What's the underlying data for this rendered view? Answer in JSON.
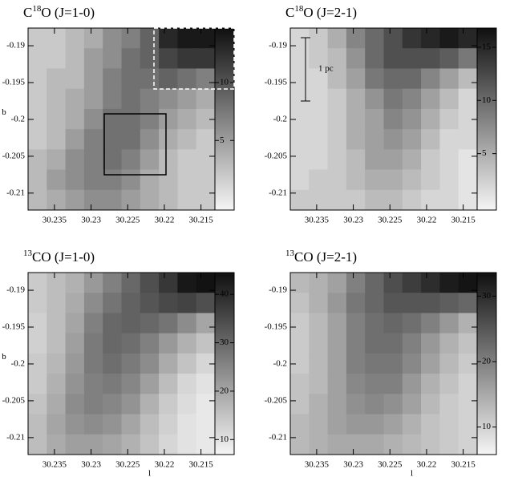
{
  "chart_data": [
    {
      "type": "heatmap",
      "title": {
        "pre": "C",
        "sup": "18",
        "text": "O (J=1-0)"
      },
      "ylabel": "b",
      "xlim": [
        30.2386,
        30.2131
      ],
      "xticks": [
        30.235,
        30.23,
        30.225,
        30.22,
        30.215
      ],
      "ylim": [
        -0.2123,
        -0.1876
      ],
      "yticks": [
        -0.19,
        -0.195,
        -0.2,
        -0.205,
        -0.21
      ],
      "clim": [
        -1,
        14.7
      ],
      "cticks": [
        5,
        10
      ],
      "values": [
        [
          2,
          2,
          3,
          4,
          6,
          7,
          9,
          13,
          14,
          14
        ],
        [
          2,
          2,
          3,
          5,
          6,
          8,
          9,
          11,
          12,
          12
        ],
        [
          2,
          3,
          3,
          5,
          7,
          8,
          8,
          9,
          8,
          7
        ],
        [
          2,
          3,
          4,
          5,
          7,
          8,
          7,
          6,
          5,
          4
        ],
        [
          2,
          3,
          4,
          6,
          8,
          8,
          7,
          5,
          4,
          3
        ],
        [
          2,
          3,
          5,
          7,
          8,
          8,
          6,
          4,
          3,
          2
        ],
        [
          3,
          4,
          6,
          7,
          8,
          7,
          5,
          3,
          2,
          2
        ],
        [
          3,
          5,
          6,
          7,
          7,
          6,
          4,
          3,
          2,
          2
        ],
        [
          3,
          4,
          5,
          6,
          6,
          5,
          4,
          3,
          2,
          2
        ]
      ]
    },
    {
      "type": "heatmap",
      "title": {
        "pre": "C",
        "sup": "18",
        "text": "O (J=2-1)"
      },
      "annotation": "1 pc",
      "xlim": [
        30.2386,
        30.2131
      ],
      "xticks": [
        30.235,
        30.23,
        30.225,
        30.22,
        30.215
      ],
      "ylim": [
        -0.2123,
        -0.1876
      ],
      "yticks": [
        -0.19,
        -0.195,
        -0.2,
        -0.205,
        -0.21
      ],
      "clim": [
        -0.3,
        16.8
      ],
      "cticks": [
        5,
        10,
        15
      ],
      "values": [
        [
          2,
          3,
          5,
          8,
          10,
          12,
          14,
          15,
          16,
          15
        ],
        [
          2,
          3,
          4,
          7,
          10,
          12,
          12,
          12,
          11,
          9
        ],
        [
          2,
          2,
          4,
          6,
          9,
          10,
          10,
          8,
          6,
          4
        ],
        [
          2,
          2,
          3,
          5,
          7,
          9,
          8,
          6,
          4,
          2
        ],
        [
          2,
          2,
          3,
          5,
          6,
          8,
          7,
          5,
          3,
          2
        ],
        [
          2,
          2,
          3,
          5,
          6,
          7,
          6,
          4,
          2,
          2
        ],
        [
          2,
          2,
          3,
          4,
          6,
          6,
          5,
          3,
          2,
          1
        ],
        [
          2,
          3,
          3,
          4,
          5,
          5,
          4,
          3,
          2,
          1
        ],
        [
          3,
          3,
          3,
          3,
          4,
          4,
          3,
          2,
          2,
          1
        ]
      ]
    },
    {
      "type": "heatmap",
      "title": {
        "sup": "13",
        "text": "CO (J=1-0)"
      },
      "ylabel": "b",
      "xlabel": "l",
      "xlim": [
        30.2386,
        30.2131
      ],
      "xticks": [
        30.235,
        30.23,
        30.225,
        30.22,
        30.215
      ],
      "ylim": [
        -0.2123,
        -0.1876
      ],
      "yticks": [
        -0.19,
        -0.195,
        -0.2,
        -0.205,
        -0.21
      ],
      "clim": [
        6.9,
        44.5
      ],
      "cticks": [
        10,
        20,
        30,
        40
      ],
      "values": [
        [
          14,
          16,
          18,
          22,
          26,
          30,
          34,
          38,
          43,
          44
        ],
        [
          14,
          16,
          19,
          24,
          28,
          31,
          33,
          35,
          36,
          34
        ],
        [
          13,
          16,
          20,
          26,
          30,
          31,
          30,
          28,
          24,
          20
        ],
        [
          13,
          16,
          21,
          27,
          30,
          29,
          26,
          22,
          18,
          15
        ],
        [
          14,
          17,
          22,
          27,
          29,
          27,
          24,
          19,
          15,
          12
        ],
        [
          14,
          18,
          23,
          26,
          27,
          25,
          21,
          16,
          12,
          10
        ],
        [
          15,
          19,
          24,
          26,
          25,
          23,
          18,
          14,
          11,
          9
        ],
        [
          16,
          20,
          23,
          24,
          23,
          20,
          16,
          13,
          10,
          9
        ],
        [
          16,
          19,
          21,
          21,
          20,
          18,
          15,
          12,
          10,
          9
        ]
      ]
    },
    {
      "type": "heatmap",
      "title": {
        "sup": "13",
        "text": "CO (J=2-1)"
      },
      "xlabel": "l",
      "xlim": [
        30.2386,
        30.2131
      ],
      "xticks": [
        30.235,
        30.23,
        30.225,
        30.22,
        30.215
      ],
      "ylim": [
        -0.2123,
        -0.1876
      ],
      "yticks": [
        -0.19,
        -0.195,
        -0.2,
        -0.205,
        -0.21
      ],
      "clim": [
        5.8,
        33.6
      ],
      "cticks": [
        10,
        20,
        30
      ],
      "values": [
        [
          13,
          14,
          16,
          20,
          23,
          26,
          28,
          30,
          32,
          33
        ],
        [
          12,
          14,
          17,
          21,
          23,
          25,
          25,
          25,
          24,
          23
        ],
        [
          11,
          13,
          16,
          20,
          22,
          23,
          22,
          20,
          17,
          14
        ],
        [
          11,
          13,
          16,
          20,
          22,
          22,
          20,
          17,
          14,
          12
        ],
        [
          11,
          13,
          16,
          20,
          21,
          21,
          19,
          16,
          13,
          11
        ],
        [
          12,
          13,
          16,
          19,
          20,
          20,
          17,
          14,
          12,
          10
        ],
        [
          12,
          14,
          16,
          18,
          19,
          18,
          16,
          13,
          11,
          10
        ],
        [
          13,
          14,
          16,
          17,
          17,
          16,
          14,
          12,
          11,
          10
        ],
        [
          13,
          14,
          15,
          15,
          15,
          14,
          13,
          12,
          11,
          10
        ]
      ]
    }
  ]
}
